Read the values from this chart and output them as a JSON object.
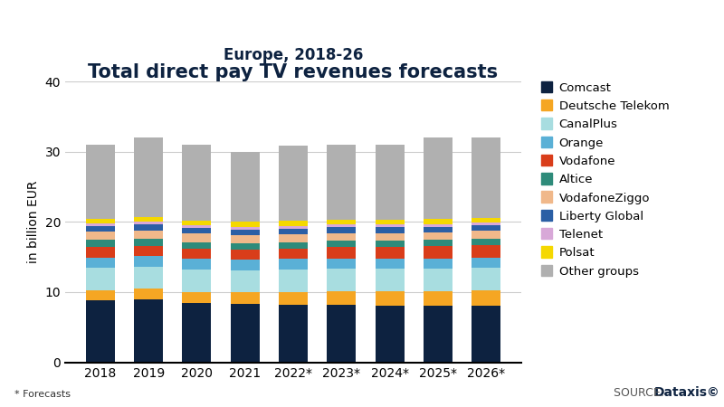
{
  "title": "Total direct pay TV revenues forecasts",
  "subtitle": "Europe, 2018-26",
  "ylabel": "in billion EUR",
  "footnote": "* Forecasts",
  "categories": [
    "2018",
    "2019",
    "2020",
    "2021",
    "2022*",
    "2023*",
    "2024*",
    "2025*",
    "2026*"
  ],
  "ylim": [
    0,
    40
  ],
  "yticks": [
    0,
    10,
    20,
    30,
    40
  ],
  "series": [
    {
      "name": "Comcast",
      "color": "#0d2240",
      "values": [
        8.8,
        9.0,
        8.5,
        8.3,
        8.2,
        8.2,
        8.1,
        8.0,
        8.0
      ]
    },
    {
      "name": "Deutsche Telekom",
      "color": "#f5a623",
      "values": [
        1.4,
        1.5,
        1.5,
        1.7,
        1.8,
        1.9,
        2.0,
        2.1,
        2.2
      ]
    },
    {
      "name": "CanalPlus",
      "color": "#a8dde0",
      "values": [
        3.2,
        3.1,
        3.2,
        3.1,
        3.2,
        3.2,
        3.2,
        3.2,
        3.2
      ]
    },
    {
      "name": "Orange",
      "color": "#5ab0d6",
      "values": [
        1.5,
        1.5,
        1.5,
        1.5,
        1.5,
        1.5,
        1.5,
        1.5,
        1.5
      ]
    },
    {
      "name": "Vodafone",
      "color": "#d93d1a",
      "values": [
        1.5,
        1.5,
        1.5,
        1.5,
        1.5,
        1.6,
        1.6,
        1.7,
        1.8
      ]
    },
    {
      "name": "Altice",
      "color": "#2e8b7a",
      "values": [
        1.0,
        1.0,
        0.9,
        0.9,
        0.9,
        0.9,
        0.9,
        0.9,
        0.9
      ]
    },
    {
      "name": "VodafoneZiggo",
      "color": "#f0b88a",
      "values": [
        1.2,
        1.2,
        1.2,
        1.1,
        1.1,
        1.1,
        1.1,
        1.1,
        1.1
      ]
    },
    {
      "name": "Liberty Global",
      "color": "#2b5fa5",
      "values": [
        0.8,
        0.8,
        0.8,
        0.8,
        0.8,
        0.8,
        0.8,
        0.8,
        0.8
      ]
    },
    {
      "name": "Telenet",
      "color": "#d8a8d8",
      "values": [
        0.4,
        0.4,
        0.4,
        0.4,
        0.4,
        0.4,
        0.4,
        0.4,
        0.4
      ]
    },
    {
      "name": "Polsat",
      "color": "#f5d800",
      "values": [
        0.6,
        0.7,
        0.7,
        0.7,
        0.7,
        0.7,
        0.7,
        0.7,
        0.7
      ]
    },
    {
      "name": "Other groups",
      "color": "#b0b0b0",
      "values": [
        10.6,
        11.3,
        10.8,
        9.9,
        10.7,
        10.7,
        10.7,
        11.6,
        11.4
      ]
    }
  ],
  "bar_width": 0.6,
  "background_color": "#ffffff",
  "title_color": "#0d2240",
  "subtitle_color": "#0d2240",
  "title_fontsize": 15,
  "subtitle_fontsize": 12,
  "axis_fontsize": 10,
  "legend_fontsize": 9.5,
  "grid_color": "#cccccc"
}
